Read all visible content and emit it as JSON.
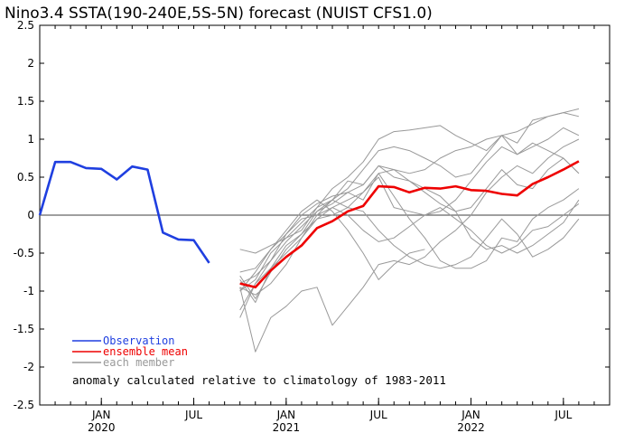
{
  "chart_data": {
    "type": "line",
    "title": "Nino3.4 SSTA(190-240E,5S-5N) forecast (NUIST CFS1.0)",
    "xlabel": "",
    "ylabel": "",
    "ylim": [
      -2.5,
      2.5
    ],
    "yticks": [
      "2.5",
      "2",
      "1.5",
      "1",
      "0.5",
      "0",
      "-0.5",
      "-1",
      "-1.5",
      "-2",
      "-2.5"
    ],
    "xlim": [
      "2019-09",
      "2022-10"
    ],
    "xticks": [
      {
        "month": "JAN",
        "year": "2020",
        "at": "2020-01"
      },
      {
        "month": "JUL",
        "year": "",
        "at": "2020-07"
      },
      {
        "month": "JAN",
        "year": "2021",
        "at": "2021-01"
      },
      {
        "month": "JUL",
        "year": "",
        "at": "2021-07"
      },
      {
        "month": "JAN",
        "year": "2022",
        "at": "2022-01"
      },
      {
        "month": "JUL",
        "year": "",
        "at": "2022-07"
      }
    ],
    "grid": false,
    "legend": [
      {
        "label": "Observation",
        "color": "#1f3fe0"
      },
      {
        "label": "ensemble mean",
        "color": "#ee0000"
      },
      {
        "label": "each member",
        "color": "#999999"
      }
    ],
    "annotation": "anomaly calculated relative to climatology of 1983-2011",
    "series": [
      {
        "role": "observation",
        "color": "#1f3fe0",
        "x": [
          "2019-09",
          "2019-10",
          "2019-11",
          "2019-12",
          "2020-01",
          "2020-02",
          "2020-03",
          "2020-04",
          "2020-05",
          "2020-06",
          "2020-07",
          "2020-08",
          "2020-09"
        ],
        "values": [
          0.0,
          0.7,
          0.7,
          0.62,
          0.61,
          0.47,
          0.64,
          0.6,
          -0.23,
          -0.32,
          -0.33,
          -0.63,
          null
        ]
      },
      {
        "role": "ensemble-mean",
        "color": "#ee0000",
        "x": [
          "2020-10",
          "2020-11",
          "2020-12",
          "2021-01",
          "2021-02",
          "2021-03",
          "2021-04",
          "2021-05",
          "2021-06",
          "2021-07",
          "2021-08",
          "2021-09",
          "2021-10",
          "2021-11",
          "2021-12",
          "2022-01",
          "2022-02",
          "2022-03",
          "2022-04",
          "2022-05",
          "2022-06",
          "2022-07",
          "2022-08"
        ],
        "values": [
          -0.9,
          -0.95,
          -0.73,
          -0.55,
          -0.4,
          -0.17,
          -0.08,
          0.05,
          0.12,
          0.38,
          0.37,
          0.3,
          0.36,
          0.35,
          0.38,
          0.33,
          0.32,
          0.28,
          0.26,
          0.41,
          0.5,
          0.6,
          0.71
        ]
      },
      {
        "role": "member",
        "color": "#999999",
        "x": [
          "2020-10",
          "2020-11",
          "2020-12",
          "2021-01",
          "2021-02",
          "2021-03",
          "2021-04",
          "2021-05",
          "2021-06",
          "2021-07",
          "2021-08",
          "2021-09",
          "2021-10",
          "2021-11",
          "2021-12",
          "2022-01",
          "2022-02",
          "2022-03",
          "2022-04",
          "2022-05",
          "2022-06",
          "2022-07",
          "2022-08"
        ],
        "values": [
          -0.8,
          -1.1,
          -0.75,
          -0.45,
          -0.25,
          -0.05,
          0.1,
          0.2,
          0.3,
          0.55,
          0.6,
          0.55,
          0.6,
          0.75,
          0.85,
          0.9,
          1.0,
          1.05,
          1.1,
          1.2,
          1.3,
          1.35,
          1.4
        ]
      },
      {
        "role": "member",
        "color": "#999999",
        "x": [
          "2020-10",
          "2020-11",
          "2020-12",
          "2021-01",
          "2021-02",
          "2021-03",
          "2021-04",
          "2021-05",
          "2021-06",
          "2021-07",
          "2021-08",
          "2021-09",
          "2021-10",
          "2021-11",
          "2021-12",
          "2022-01",
          "2022-02",
          "2022-03",
          "2022-04",
          "2022-05",
          "2022-06",
          "2022-07",
          "2022-08"
        ],
        "values": [
          -0.45,
          -0.5,
          -0.4,
          -0.3,
          -0.1,
          0.1,
          0.35,
          0.5,
          0.7,
          1.0,
          1.1,
          1.12,
          1.15,
          1.18,
          1.05,
          0.95,
          0.85,
          1.05,
          0.95,
          1.25,
          1.3,
          1.35,
          1.3
        ]
      },
      {
        "role": "member",
        "color": "#999999",
        "x": [
          "2020-10",
          "2020-11",
          "2020-12",
          "2021-01",
          "2021-02",
          "2021-03",
          "2021-04",
          "2021-05",
          "2021-06",
          "2021-07",
          "2021-08",
          "2021-09",
          "2021-10",
          "2021-11",
          "2021-12",
          "2022-01",
          "2022-02",
          "2022-03",
          "2022-04",
          "2022-05",
          "2022-06",
          "2022-07",
          "2022-08"
        ],
        "values": [
          -1.35,
          -0.9,
          -0.7,
          -0.5,
          -0.3,
          0.0,
          0.2,
          0.35,
          0.6,
          0.85,
          0.9,
          0.85,
          0.75,
          0.65,
          0.5,
          0.55,
          0.8,
          1.05,
          0.8,
          0.9,
          1.0,
          1.15,
          1.05
        ]
      },
      {
        "role": "member",
        "color": "#999999",
        "x": [
          "2020-10",
          "2020-11",
          "2020-12",
          "2021-01",
          "2021-02",
          "2021-03",
          "2021-04",
          "2021-05",
          "2021-06",
          "2021-07",
          "2021-08",
          "2021-09",
          "2021-10",
          "2021-11",
          "2021-12",
          "2022-01",
          "2022-02",
          "2022-03",
          "2022-04",
          "2022-05",
          "2022-06",
          "2022-07",
          "2022-08"
        ],
        "values": [
          -0.95,
          -1.8,
          -1.35,
          -1.2,
          -1.0,
          -0.95,
          -1.45,
          -1.2,
          -0.95,
          -0.65,
          -0.6,
          -0.65,
          -0.55,
          -0.35,
          -0.2,
          0.0,
          0.3,
          0.5,
          0.65,
          0.55,
          0.75,
          0.9,
          1.0
        ]
      },
      {
        "role": "member",
        "color": "#999999",
        "x": [
          "2020-10",
          "2020-11",
          "2020-12",
          "2021-01",
          "2021-02",
          "2021-03",
          "2021-04",
          "2021-05",
          "2021-06",
          "2021-07",
          "2021-08",
          "2021-09",
          "2021-10",
          "2021-11",
          "2021-12",
          "2022-01",
          "2022-02",
          "2022-03",
          "2022-04",
          "2022-05",
          "2022-06",
          "2022-07",
          "2022-08"
        ],
        "values": [
          -1.0,
          -0.85,
          -0.5,
          -0.3,
          -0.2,
          0.1,
          0.2,
          0.45,
          0.4,
          0.65,
          0.5,
          0.45,
          0.35,
          0.25,
          0.05,
          -0.3,
          -0.45,
          -0.4,
          -0.5,
          -0.4,
          -0.25,
          -0.1,
          0.2
        ]
      },
      {
        "role": "member",
        "color": "#999999",
        "x": [
          "2020-10",
          "2020-11",
          "2020-12",
          "2021-01",
          "2021-02",
          "2021-03",
          "2021-04",
          "2021-05",
          "2021-06",
          "2021-07",
          "2021-08",
          "2021-09",
          "2021-10",
          "2021-11",
          "2021-12",
          "2022-01",
          "2022-02",
          "2022-03",
          "2022-04",
          "2022-05",
          "2022-06",
          "2022-07",
          "2022-08"
        ],
        "values": [
          -0.75,
          -0.7,
          -0.45,
          -0.25,
          0.0,
          0.15,
          0.25,
          0.3,
          0.2,
          0.55,
          0.25,
          -0.05,
          -0.3,
          -0.6,
          -0.7,
          -0.7,
          -0.6,
          -0.3,
          -0.35,
          -0.05,
          0.1,
          0.2,
          0.35
        ]
      },
      {
        "role": "member",
        "color": "#999999",
        "x": [
          "2020-10",
          "2020-11",
          "2020-12",
          "2021-01",
          "2021-02",
          "2021-03",
          "2021-04",
          "2021-05",
          "2021-06",
          "2021-07",
          "2021-08",
          "2021-09",
          "2021-10",
          "2021-11",
          "2021-12",
          "2022-01",
          "2022-02",
          "2022-03",
          "2022-04",
          "2022-05",
          "2022-06",
          "2022-07",
          "2022-08"
        ],
        "values": [
          -0.95,
          -1.05,
          -0.9,
          -0.65,
          -0.3,
          -0.05,
          0.0,
          0.1,
          0.3,
          0.5,
          0.1,
          0.05,
          0.0,
          0.05,
          0.2,
          0.45,
          0.7,
          0.9,
          0.8,
          0.95,
          0.85,
          0.75,
          0.55
        ]
      },
      {
        "role": "member",
        "color": "#999999",
        "x": [
          "2020-10",
          "2020-11",
          "2020-12",
          "2021-01",
          "2021-02",
          "2021-03",
          "2021-04",
          "2021-05",
          "2021-06",
          "2021-07",
          "2021-08",
          "2021-09",
          "2021-10",
          "2021-11",
          "2021-12",
          "2022-01",
          "2022-02",
          "2022-03",
          "2022-04",
          "2022-05",
          "2022-06",
          "2022-07",
          "2022-08"
        ],
        "values": [
          -0.85,
          -1.15,
          -0.7,
          -0.4,
          -0.25,
          0.05,
          0.2,
          0.1,
          0.05,
          -0.2,
          -0.4,
          -0.55,
          -0.65,
          -0.7,
          -0.65,
          -0.55,
          -0.3,
          -0.05,
          -0.25,
          -0.55,
          -0.45,
          -0.3,
          -0.05
        ]
      },
      {
        "role": "member",
        "color": "#999999",
        "x": [
          "2020-10",
          "2020-11",
          "2020-12",
          "2021-01",
          "2021-02",
          "2021-03",
          "2021-04",
          "2021-05",
          "2021-06",
          "2021-07",
          "2021-08",
          "2021-09",
          "2021-10",
          "2021-11",
          "2021-12",
          "2022-01",
          "2022-02",
          "2022-03",
          "2022-04",
          "2022-05",
          "2022-06",
          "2022-07",
          "2022-08"
        ],
        "values": [
          -0.9,
          -0.8,
          -0.6,
          -0.35,
          -0.15,
          0.05,
          0.15,
          0.3,
          0.4,
          0.65,
          0.6,
          0.45,
          0.3,
          0.15,
          0.05,
          0.1,
          0.35,
          0.6,
          0.4,
          0.35,
          0.6,
          0.75,
          0.55
        ]
      },
      {
        "role": "member",
        "color": "#999999",
        "x": [
          "2020-10",
          "2020-11",
          "2020-12",
          "2021-01",
          "2021-02",
          "2021-03",
          "2021-04",
          "2021-05",
          "2021-06",
          "2021-07",
          "2021-08",
          "2021-09",
          "2021-10",
          "2021-11",
          "2021-12",
          "2022-01",
          "2022-02",
          "2022-03",
          "2022-04",
          "2022-05",
          "2022-06",
          "2022-07",
          "2022-08"
        ],
        "values": [
          -1.25,
          -0.9,
          -0.6,
          -0.25,
          -0.05,
          0.0,
          0.1,
          0.0,
          -0.2,
          -0.35,
          -0.3,
          -0.15,
          0.0,
          0.1,
          -0.05,
          -0.2,
          -0.4,
          -0.5,
          -0.4,
          -0.2,
          -0.15,
          0.0,
          0.15
        ]
      },
      {
        "role": "member",
        "color": "#999999",
        "x": [
          "2020-10",
          "2020-11",
          "2020-12",
          "2021-01",
          "2021-02",
          "2021-03",
          "2021-04",
          "2021-05",
          "2021-06",
          "2021-07",
          "2021-08",
          "2021-09",
          "2021-10",
          "2021-11",
          "2021-12",
          "2022-01",
          "2022-02",
          "2022-03",
          "2022-04",
          "2022-05",
          "2022-06",
          "2022-07",
          "2022-08"
        ],
        "values": [
          -1.0,
          -0.75,
          -0.45,
          -0.2,
          0.05,
          0.2,
          0.05,
          -0.2,
          -0.5,
          -0.85,
          -0.65,
          -0.5,
          -0.45,
          null,
          null,
          null,
          null,
          null,
          null,
          null,
          null,
          null,
          null
        ]
      }
    ]
  }
}
